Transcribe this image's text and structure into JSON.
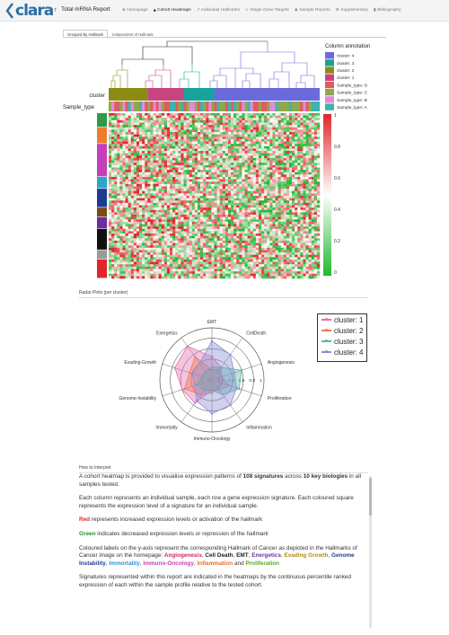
{
  "app": {
    "logo_text": "clara",
    "logo_sup": "T",
    "report_title": "Total mRNA Report"
  },
  "nav": [
    {
      "label": "Homepage",
      "icon": "home-icon",
      "glyph": "⊕",
      "active": false
    },
    {
      "label": "Cohort Heatmaps",
      "icon": "grid-icon",
      "glyph": "■",
      "active": true
    },
    {
      "label": "Individual Hallmarks",
      "icon": "chart-line-icon",
      "glyph": "↗",
      "active": false
    },
    {
      "label": "Single Gene Targets",
      "icon": "pulse-icon",
      "glyph": "∿",
      "active": false
    },
    {
      "label": "Sample Reports",
      "icon": "user-icon",
      "glyph": "♟",
      "active": false
    },
    {
      "label": "Supplimentary",
      "icon": "gear-icon",
      "glyph": "⚙",
      "active": false
    },
    {
      "label": "Bibliography",
      "icon": "book-icon",
      "glyph": "▮",
      "active": false
    }
  ],
  "tabs": [
    {
      "label": "Grouped By Hallmark",
      "active": true
    },
    {
      "label": "Independent of Hallmark",
      "active": false
    }
  ],
  "heatmap": {
    "row_label_cluster": "cluster",
    "row_label_sample": "Sample_type",
    "annotation_title": "Column annotation",
    "annotations": [
      {
        "label": "cluster: 4",
        "color": "#6a6adb"
      },
      {
        "label": "cluster: 3",
        "color": "#16a39a"
      },
      {
        "label": "cluster: 2",
        "color": "#8c8c14"
      },
      {
        "label": "cluster: 1",
        "color": "#c8447e"
      },
      {
        "label": "Sample_type: D",
        "color": "#e05c5c"
      },
      {
        "label": "Sample_type: C",
        "color": "#8fa84a"
      },
      {
        "label": "Sample_type: B",
        "color": "#e28ad8"
      },
      {
        "label": "Sample_type: A",
        "color": "#3cb3ac"
      }
    ],
    "colorbar_ticks": [
      "1",
      "0.8",
      "0.6",
      "0.4",
      "0.2",
      "0"
    ],
    "colors": {
      "high": "#e0262b",
      "mid": "#ffffff",
      "low": "#1fb82e"
    }
  },
  "radar": {
    "title": "Radar Plots (per cluster)",
    "axes": [
      "EMT",
      "CellDeath",
      "Angiogenesis",
      "Proliferation",
      "Inflammation",
      "Immuno-Oncology",
      "Immortality",
      "Genome-Instability",
      "Evading-Growth",
      "Energetics"
    ],
    "ticks": [
      "0",
      "0.2",
      "0.4",
      "0.6",
      "0.8",
      "1"
    ],
    "series": [
      {
        "name": "cluster: 1",
        "color": "#e36fb2",
        "values": [
          0.45,
          0.3,
          0.2,
          0.35,
          0.25,
          0.2,
          0.55,
          0.6,
          0.75,
          0.8
        ]
      },
      {
        "name": "cluster: 2",
        "color": "#ef7b52",
        "values": [
          0.2,
          0.25,
          0.15,
          0.2,
          0.2,
          0.25,
          0.35,
          0.55,
          0.45,
          0.55
        ]
      },
      {
        "name": "cluster: 3",
        "color": "#58b8a4",
        "values": [
          0.25,
          0.3,
          0.6,
          0.55,
          0.35,
          0.2,
          0.25,
          0.3,
          0.2,
          0.2
        ]
      },
      {
        "name": "cluster: 4",
        "color": "#8b8fd6",
        "values": [
          0.75,
          0.6,
          0.45,
          0.5,
          0.6,
          0.65,
          0.5,
          0.35,
          0.4,
          0.4
        ]
      }
    ]
  },
  "interpret": {
    "title": "How to Interpret",
    "p1_a": "A cohort heatmap is provided to visualise expression patterns of ",
    "p1_b": "108 signatures",
    "p1_c": " across ",
    "p1_d": "10 key biologies",
    "p1_e": " in all samples tested.",
    "p2": "Each column represents an individual sample, each row a gene expression signature. Each coloured square represents the expression level of a signature for an individual sample.",
    "p3_kw": "Red",
    "p3_rest": " represents increased expression levels or activation of the hallmark",
    "p4_kw": "Green",
    "p4_rest": " indicates decreased expression levels or repression of the hallmark",
    "p5_intro": "Coloured labels on the y-axis represent the corresponding Hallmark of Cancer as depicted in the Hallmarks of Cancer image on the homepage: ",
    "hallmarks": [
      {
        "label": "Angiogenesis",
        "color": "#d6245b",
        "sep": ", "
      },
      {
        "label": "Cell Death",
        "color": "#222222",
        "sep": ", "
      },
      {
        "label": "EMT",
        "color": "#222222",
        "sep": ", "
      },
      {
        "label": "Energetics",
        "color": "#6a2f9c",
        "sep": ", "
      },
      {
        "label": "Evading Growth",
        "color": "#b58a12",
        "sep": ", "
      },
      {
        "label": "Genome Instability",
        "color": "#1f3b8f",
        "sep": ", "
      },
      {
        "label": "Immortality",
        "color": "#2a93d0",
        "sep": ", "
      },
      {
        "label": "Immuno-Oncology",
        "color": "#c43fb8",
        "sep": ", "
      },
      {
        "label": "Inflammation",
        "color": "#f06a22",
        "sep": " and "
      },
      {
        "label": "Proliferation",
        "color": "#5aa81e",
        "sep": ""
      }
    ],
    "p6": "Signatures represented within this report are indicated in the heatmaps by the continuous percentile ranked expression of each within the sample profile relative to the tested cohort."
  }
}
